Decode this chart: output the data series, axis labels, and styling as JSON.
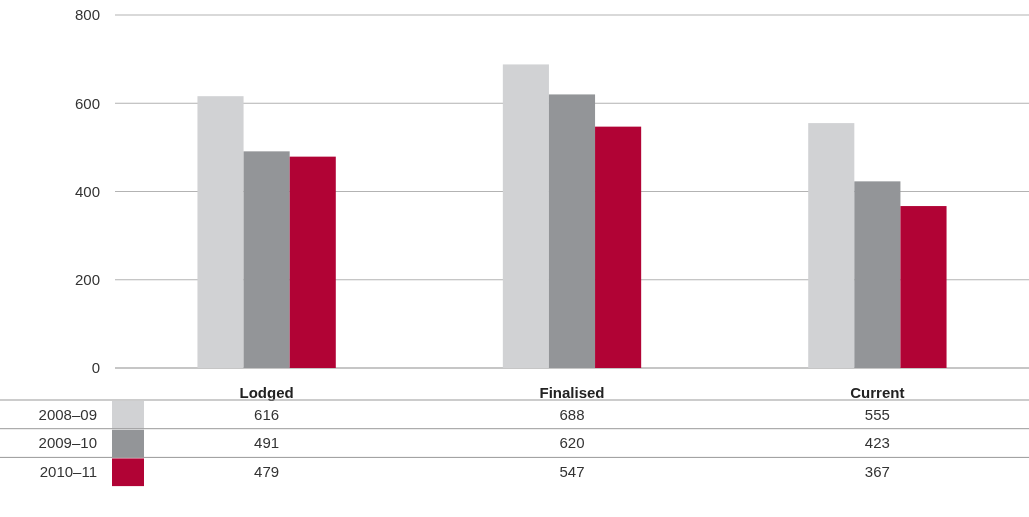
{
  "chart_data": {
    "type": "bar",
    "categories": [
      "Lodged",
      "Finalised",
      "Current"
    ],
    "series": [
      {
        "name": "2008–09",
        "color": "#d1d2d4",
        "values": [
          616,
          688,
          555
        ]
      },
      {
        "name": "2009–10",
        "color": "#939598",
        "values": [
          491,
          620,
          423
        ]
      },
      {
        "name": "2010–11",
        "color": "#b10335",
        "values": [
          479,
          547,
          367
        ]
      }
    ],
    "ylim": [
      0,
      800
    ],
    "yticks": [
      0,
      200,
      400,
      600,
      800
    ],
    "grid": "y",
    "legend": "bottom",
    "data_labels": true
  }
}
